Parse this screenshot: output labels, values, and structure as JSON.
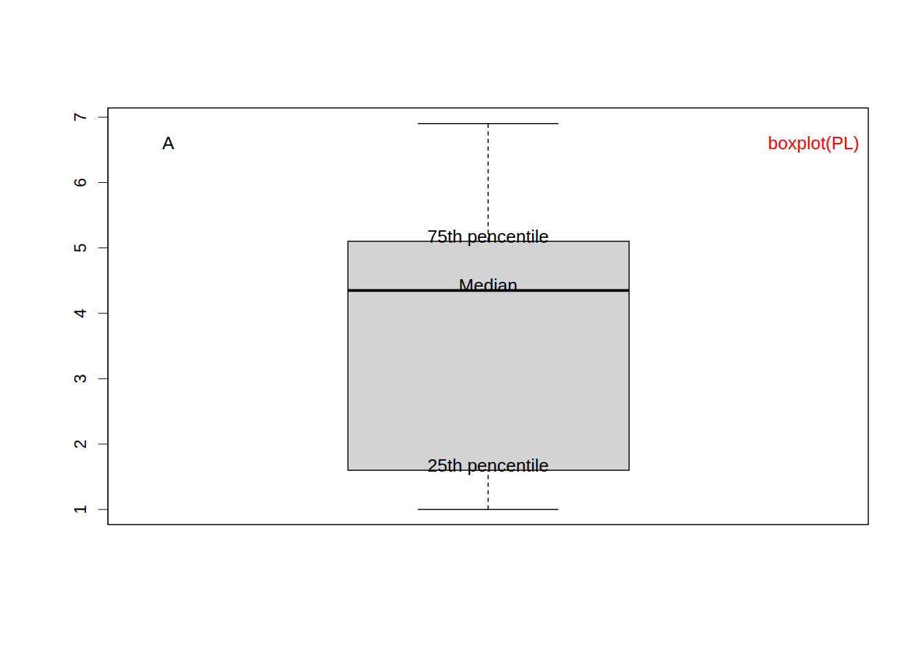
{
  "chart_data": {
    "type": "boxplot",
    "stats": {
      "min": 1.0,
      "q1": 1.6,
      "median": 4.35,
      "q3": 5.1,
      "max": 6.9
    },
    "stat_labels": {
      "q3": "75th pencentile",
      "median": "Median",
      "q1": "25th pencentile"
    },
    "annotations": [
      {
        "text": "A"
      },
      {
        "text": "boxplot(PL)",
        "color": "#ff0000"
      }
    ],
    "color": "#d3d3d3",
    "ylim": [
      0.77,
      7.14
    ],
    "yticks": [
      1,
      2,
      3,
      4,
      5,
      6,
      7
    ],
    "tick_labels": "y"
  }
}
